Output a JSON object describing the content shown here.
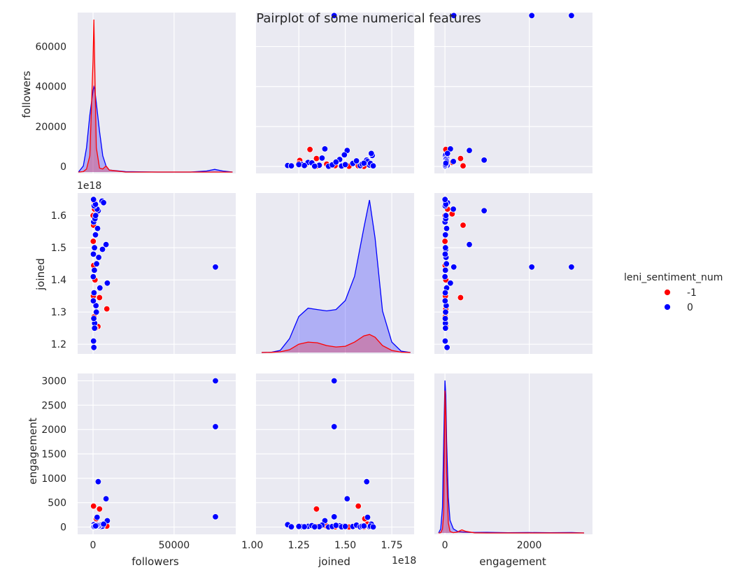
{
  "figure": {
    "title": "Pairplot of some numerical features",
    "legend_title": "leni_sentiment_num",
    "background": "#eaeaf2",
    "grid_color": "#ffffff"
  },
  "labels": {
    "followers": "followers",
    "joined": "joined",
    "engagement": "engagement",
    "exp_joined": "1e18"
  },
  "chart_data": {
    "type": "scatter",
    "title": "Pairplot of some numerical features",
    "variables": [
      "followers",
      "joined",
      "engagement"
    ],
    "hue": "leni_sentiment_num",
    "grid": true,
    "legend_placement": "right",
    "series": [
      {
        "name": "-1",
        "color": "#ff0000",
        "points": [
          {
            "followers": 8500,
            "joined": 1.31e+18,
            "engagement": 20
          },
          {
            "followers": 500,
            "joined": 1.65e+18,
            "engagement": 10
          },
          {
            "followers": 4000,
            "joined": 1.345e+18,
            "engagement": 370
          },
          {
            "followers": 3000,
            "joined": 1.255e+18,
            "engagement": 20
          },
          {
            "followers": 1500,
            "joined": 1.25e+18,
            "engagement": 10
          },
          {
            "followers": 300,
            "joined": 1.57e+18,
            "engagement": 430
          },
          {
            "followers": 2000,
            "joined": 1.605e+18,
            "engagement": 170
          },
          {
            "followers": 400,
            "joined": 1.445e+18,
            "engagement": 5
          },
          {
            "followers": 200,
            "joined": 1.35e+18,
            "engagement": 10
          },
          {
            "followers": 100,
            "joined": 1.52e+18,
            "engagement": 0
          },
          {
            "followers": 600,
            "joined": 1.285e+18,
            "engagement": 5
          },
          {
            "followers": 900,
            "joined": 1.62e+18,
            "engagement": 60
          },
          {
            "followers": 1200,
            "joined": 1.4e+18,
            "engagement": 20
          },
          {
            "followers": 700,
            "joined": 1.645e+18,
            "engagement": 5
          },
          {
            "followers": 50,
            "joined": 1.6e+18,
            "engagement": 0
          }
        ]
      },
      {
        "name": "0",
        "color": "#0000ff",
        "points": [
          {
            "followers": 75500,
            "joined": 1.44e+18,
            "engagement": 3000
          },
          {
            "followers": 75500,
            "joined": 1.44e+18,
            "engagement": 2060
          },
          {
            "followers": 75500,
            "joined": 1.44e+18,
            "engagement": 210
          },
          {
            "followers": 3200,
            "joined": 1.615e+18,
            "engagement": 930
          },
          {
            "followers": 8000,
            "joined": 1.51e+18,
            "engagement": 580
          },
          {
            "followers": 5500,
            "joined": 1.645e+18,
            "engagement": 5
          },
          {
            "followers": 8800,
            "joined": 1.39e+18,
            "engagement": 130
          },
          {
            "followers": 5800,
            "joined": 1.495e+18,
            "engagement": 20
          },
          {
            "followers": 4200,
            "joined": 1.375e+18,
            "engagement": 40
          },
          {
            "followers": 2500,
            "joined": 1.62e+18,
            "engagement": 200
          },
          {
            "followers": 1500,
            "joined": 1.54e+18,
            "engagement": 10
          },
          {
            "followers": 500,
            "joined": 1.19e+18,
            "engagement": 50
          },
          {
            "followers": 300,
            "joined": 1.21e+18,
            "engagement": 5
          },
          {
            "followers": 1000,
            "joined": 1.265e+18,
            "engagement": 10
          },
          {
            "followers": 2000,
            "joined": 1.3e+18,
            "engagement": 15
          },
          {
            "followers": 1800,
            "joined": 1.32e+18,
            "engagement": 30
          },
          {
            "followers": 600,
            "joined": 1.36e+18,
            "engagement": 8
          },
          {
            "followers": 3500,
            "joined": 1.47e+18,
            "engagement": 25
          },
          {
            "followers": 200,
            "joined": 1.48e+18,
            "engagement": 5
          },
          {
            "followers": 900,
            "joined": 1.5e+18,
            "engagement": 12
          },
          {
            "followers": 2800,
            "joined": 1.56e+18,
            "engagement": 40
          },
          {
            "followers": 400,
            "joined": 1.58e+18,
            "engagement": 3
          },
          {
            "followers": 1200,
            "joined": 1.59e+18,
            "engagement": 18
          },
          {
            "followers": 700,
            "joined": 1.63e+18,
            "engagement": 6
          },
          {
            "followers": 6500,
            "joined": 1.64e+18,
            "engagement": 60
          },
          {
            "followers": 1500,
            "joined": 1.635e+18,
            "engagement": 20
          },
          {
            "followers": 300,
            "joined": 1.65e+18,
            "engagement": 2
          },
          {
            "followers": 100,
            "joined": 1.41e+18,
            "engagement": 1
          },
          {
            "followers": 800,
            "joined": 1.43e+18,
            "engagement": 10
          },
          {
            "followers": 2200,
            "joined": 1.45e+18,
            "engagement": 35
          },
          {
            "followers": 150,
            "joined": 1.335e+18,
            "engagement": 4
          },
          {
            "followers": 450,
            "joined": 1.28e+18,
            "engagement": 7
          },
          {
            "followers": 950,
            "joined": 1.25e+18,
            "engagement": 12
          },
          {
            "followers": 1600,
            "joined": 1.6e+18,
            "engagement": 22
          }
        ]
      }
    ],
    "kde_diagonal": {
      "followers": {
        "x": [
          -9000,
          -6000,
          -4000,
          -2000,
          0,
          500,
          1000,
          2000,
          4000,
          6000,
          8000,
          10000,
          20000,
          40000,
          60000,
          70000,
          75000,
          80000,
          86000
        ],
        "-1": [
          0,
          0.2,
          1.5,
          8,
          55,
          75,
          55,
          12,
          2,
          1.5,
          3,
          1,
          0,
          0,
          0,
          0,
          0,
          0,
          0
        ],
        "0": [
          0,
          3,
          12,
          28,
          40,
          42,
          41,
          34,
          20,
          8,
          3,
          1,
          0.2,
          0,
          0,
          0.5,
          1.3,
          0.5,
          0
        ]
      },
      "joined": {
        "x": [
          1.05e+18,
          1.1e+18,
          1.15e+18,
          1.2e+18,
          1.25e+18,
          1.3e+18,
          1.35e+18,
          1.4e+18,
          1.45e+18,
          1.5e+18,
          1.55e+18,
          1.6e+18,
          1.63e+18,
          1.66e+18,
          1.7e+18,
          1.75e+18,
          1.8e+18,
          1.85e+18
        ],
        "-1": [
          0,
          0.2,
          1,
          4,
          12,
          15,
          14,
          10,
          8,
          9,
          15,
          24,
          26,
          22,
          10,
          3,
          0.5,
          0
        ],
        "0": [
          0,
          0.3,
          3,
          20,
          52,
          64,
          62,
          60,
          62,
          75,
          110,
          180,
          220,
          165,
          60,
          15,
          2,
          0
        ]
      },
      "engagement": {
        "x": [
          -150,
          -100,
          -60,
          -30,
          0,
          20,
          40,
          80,
          120,
          200,
          300,
          400,
          500,
          700,
          1000,
          1500,
          2000,
          2500,
          3000,
          3300
        ],
        "-1": [
          0,
          0.5,
          8,
          40,
          280,
          230,
          120,
          20,
          3,
          0.5,
          2,
          6,
          3,
          0.3,
          0,
          0,
          0,
          0,
          0,
          0
        ],
        "0": [
          0,
          8,
          50,
          180,
          300,
          270,
          180,
          70,
          25,
          8,
          3,
          2,
          1.5,
          1,
          1.2,
          0.4,
          0.8,
          0.4,
          0.8,
          0
        ]
      }
    },
    "axes": {
      "followers": {
        "range": [
          -9500,
          88000
        ],
        "ticks": [
          0,
          50000
        ],
        "ticks_y": [
          0,
          20000,
          40000,
          60000
        ],
        "range_y": [
          -3500,
          77000
        ]
      },
      "joined": {
        "range": [
          1.02e+18,
          1.87e+18
        ],
        "ticks": [
          1e+18,
          1.25e+18,
          1.5e+18,
          1.75e+18
        ],
        "ticks_labels": [
          "1.00",
          "1.25",
          "1.50",
          "1.75"
        ],
        "range_y": [
          1.17e+18,
          1.67e+18
        ],
        "ticks_y": [
          1.2e+18,
          1.3e+18,
          1.4e+18,
          1.5e+18,
          1.6e+18
        ],
        "ticks_y_labels": [
          "1.2",
          "1.3",
          "1.4",
          "1.5",
          "1.6"
        ]
      },
      "engagement": {
        "range": [
          -250,
          3500
        ],
        "ticks": [
          0,
          2000
        ],
        "range_y": [
          -150,
          3150
        ],
        "ticks_y": [
          0,
          500,
          1000,
          1500,
          2000,
          2500,
          3000
        ]
      }
    },
    "tick_labels": {
      "followers_x": [
        "0",
        "50000"
      ],
      "followers_y": [
        "0",
        "20000",
        "40000",
        "60000"
      ],
      "joined_x": [
        "1.00",
        "1.25",
        "1.50",
        "1.75"
      ],
      "joined_y": [
        "1.2",
        "1.3",
        "1.4",
        "1.5",
        "1.6"
      ],
      "engagement_x": [
        "0",
        "2000"
      ],
      "engagement_y": [
        "0",
        "500",
        "1000",
        "1500",
        "2000",
        "2500",
        "3000"
      ]
    }
  }
}
